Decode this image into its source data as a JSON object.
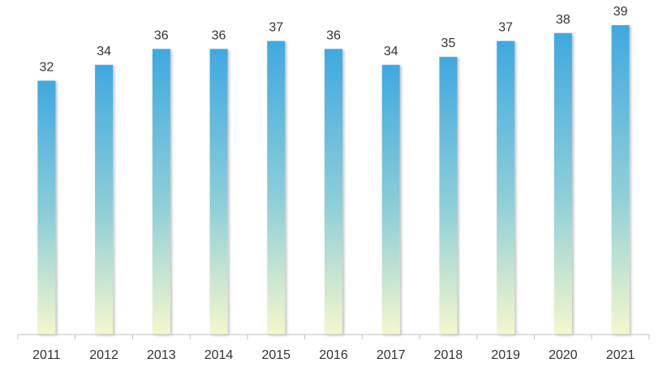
{
  "chart_data": {
    "type": "bar",
    "title": "",
    "xlabel": "",
    "ylabel": "",
    "categories": [
      "2011",
      "2012",
      "2013",
      "2014",
      "2015",
      "2016",
      "2017",
      "2018",
      "2019",
      "2020",
      "2021"
    ],
    "values": [
      32,
      34,
      36,
      36,
      37,
      36,
      34,
      35,
      37,
      38,
      39
    ],
    "data_labels": [
      "32",
      "34",
      "36",
      "36",
      "37",
      "36",
      "34",
      "35",
      "37",
      "38",
      "39"
    ],
    "ylim": [
      0,
      40
    ],
    "grid": false,
    "legend": "none",
    "colors": {
      "bar_top": "#3FA9E0",
      "bar_mid": "#8FCFD8",
      "bar_bottom": "#F5F7CC",
      "axis": "#BFBFBF",
      "text": "#333333"
    }
  }
}
